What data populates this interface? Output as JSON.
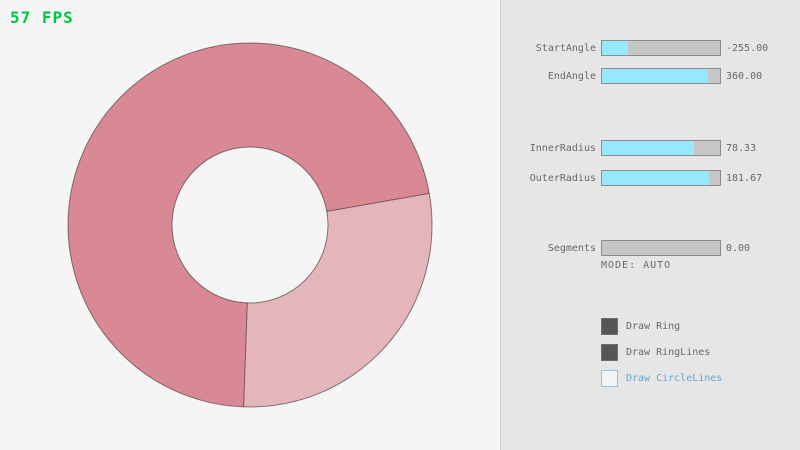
{
  "fps_counter": {
    "text": "57 FPS"
  },
  "colors": {
    "fps_green": "#00c83c",
    "slider_fill": "#97e8ff",
    "slider_track": "#c6c6c6",
    "panel_bg": "#e6e6e6",
    "ring_overlap": "#d98994",
    "ring_single": "#e5b5bc",
    "ring_lines": "rgba(0,0,0,0.45)",
    "text_gray": "#686868",
    "focus_blue": "#64a7cc"
  },
  "ring": {
    "start_angle": -255.0,
    "end_angle": 360.0,
    "inner_radius": 78.33,
    "outer_radius": 181.67,
    "segments": 0.0,
    "mode": "AUTO"
  },
  "panel": {
    "sliders": [
      {
        "label": "StartAngle",
        "value": "-255.00",
        "fill_pct": 21.7
      },
      {
        "label": "EndAngle",
        "value": "360.00",
        "fill_pct": 90.0
      },
      {
        "label": "InnerRadius",
        "value": "78.33",
        "fill_pct": 78.3
      },
      {
        "label": "OuterRadius",
        "value": "181.67",
        "fill_pct": 90.8
      },
      {
        "label": "Segments",
        "value": "0.00",
        "fill_pct": 0
      }
    ],
    "mode_text": "MODE: AUTO",
    "checkboxes": [
      {
        "label": "Draw Ring",
        "checked": true
      },
      {
        "label": "Draw RingLines",
        "checked": true
      },
      {
        "label": "Draw CircleLines",
        "checked": false
      }
    ]
  }
}
